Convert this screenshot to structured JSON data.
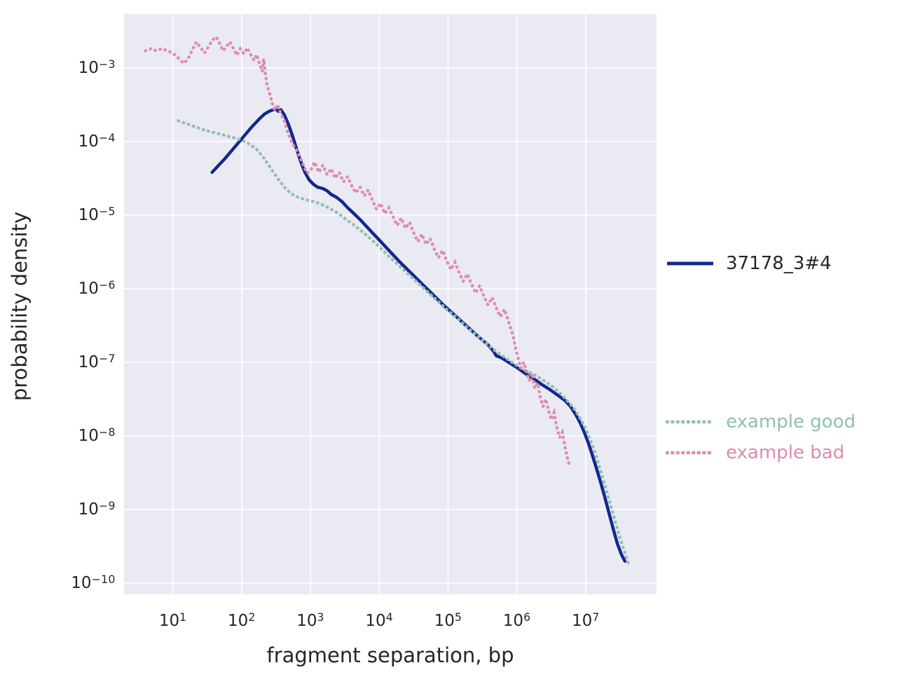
{
  "figure": {
    "background": "#ffffff",
    "plot_background": "#eaeaf2",
    "grid_color": "#ffffff",
    "text_color": "#262626"
  },
  "chart_data": {
    "type": "line",
    "title": "",
    "xlabel": "fragment separation, bp",
    "ylabel": "probability density",
    "x_scale": "log",
    "y_scale": "log",
    "xlim_log10": [
      0.29,
      8.03
    ],
    "ylim_log10": [
      -10.15,
      -2.27
    ],
    "grid": true,
    "legend_position": "right",
    "x_ticks": [
      {
        "base": "10",
        "exp": "1",
        "value": 1
      },
      {
        "base": "10",
        "exp": "2",
        "value": 2
      },
      {
        "base": "10",
        "exp": "3",
        "value": 3
      },
      {
        "base": "10",
        "exp": "4",
        "value": 4
      },
      {
        "base": "10",
        "exp": "5",
        "value": 5
      },
      {
        "base": "10",
        "exp": "6",
        "value": 6
      },
      {
        "base": "10",
        "exp": "7",
        "value": 7
      }
    ],
    "y_ticks": [
      {
        "base": "10",
        "exp": "−3",
        "value": -3
      },
      {
        "base": "10",
        "exp": "−4",
        "value": -4
      },
      {
        "base": "10",
        "exp": "−5",
        "value": -5
      },
      {
        "base": "10",
        "exp": "−6",
        "value": -6
      },
      {
        "base": "10",
        "exp": "−7",
        "value": -7
      },
      {
        "base": "10",
        "exp": "−8",
        "value": -8
      },
      {
        "base": "10",
        "exp": "−9",
        "value": -9
      },
      {
        "base": "10",
        "exp": "−10",
        "value": -10
      }
    ],
    "series": [
      {
        "name": "37178_3#4",
        "color": "#13278d",
        "style": "solid",
        "label_color": "#262626",
        "points_log10": [
          [
            1.57,
            -4.42
          ],
          [
            1.65,
            -4.34
          ],
          [
            1.75,
            -4.24
          ],
          [
            1.85,
            -4.13
          ],
          [
            1.95,
            -4.02
          ],
          [
            2.05,
            -3.91
          ],
          [
            2.15,
            -3.8
          ],
          [
            2.25,
            -3.7
          ],
          [
            2.33,
            -3.63
          ],
          [
            2.4,
            -3.59
          ],
          [
            2.46,
            -3.57
          ],
          [
            2.5,
            -3.56
          ],
          [
            2.53,
            -3.59
          ],
          [
            2.57,
            -3.57
          ],
          [
            2.62,
            -3.64
          ],
          [
            2.68,
            -3.77
          ],
          [
            2.74,
            -3.93
          ],
          [
            2.8,
            -4.11
          ],
          [
            2.86,
            -4.28
          ],
          [
            2.92,
            -4.42
          ],
          [
            2.98,
            -4.52
          ],
          [
            3.04,
            -4.58
          ],
          [
            3.1,
            -4.62
          ],
          [
            3.18,
            -4.64
          ],
          [
            3.24,
            -4.67
          ],
          [
            3.3,
            -4.72
          ],
          [
            3.38,
            -4.76
          ],
          [
            3.46,
            -4.82
          ],
          [
            3.54,
            -4.9
          ],
          [
            3.62,
            -4.97
          ],
          [
            3.72,
            -5.06
          ],
          [
            3.82,
            -5.16
          ],
          [
            3.92,
            -5.26
          ],
          [
            4.02,
            -5.36
          ],
          [
            4.15,
            -5.49
          ],
          [
            4.28,
            -5.62
          ],
          [
            4.41,
            -5.74
          ],
          [
            4.54,
            -5.86
          ],
          [
            4.67,
            -5.98
          ],
          [
            4.8,
            -6.1
          ],
          [
            4.93,
            -6.22
          ],
          [
            5.06,
            -6.33
          ],
          [
            5.19,
            -6.44
          ],
          [
            5.32,
            -6.55
          ],
          [
            5.45,
            -6.66
          ],
          [
            5.58,
            -6.76
          ],
          [
            5.66,
            -6.85
          ],
          [
            5.7,
            -6.91
          ],
          [
            5.78,
            -6.94
          ],
          [
            5.88,
            -7.0
          ],
          [
            6.0,
            -7.07
          ],
          [
            6.12,
            -7.15
          ],
          [
            6.24,
            -7.22
          ],
          [
            6.36,
            -7.3
          ],
          [
            6.48,
            -7.37
          ],
          [
            6.6,
            -7.45
          ],
          [
            6.7,
            -7.52
          ],
          [
            6.78,
            -7.6
          ],
          [
            6.85,
            -7.7
          ],
          [
            6.92,
            -7.82
          ],
          [
            6.98,
            -7.95
          ],
          [
            7.04,
            -8.1
          ],
          [
            7.1,
            -8.27
          ],
          [
            7.16,
            -8.45
          ],
          [
            7.22,
            -8.64
          ],
          [
            7.28,
            -8.84
          ],
          [
            7.34,
            -9.05
          ],
          [
            7.4,
            -9.26
          ],
          [
            7.46,
            -9.46
          ],
          [
            7.52,
            -9.61
          ],
          [
            7.57,
            -9.7
          ]
        ]
      },
      {
        "name": "example good",
        "color": "#8fbeb3",
        "style": "dotted",
        "label_color": "#8fbeb3",
        "points_log10": [
          [
            1.08,
            -3.72
          ],
          [
            1.2,
            -3.76
          ],
          [
            1.32,
            -3.8
          ],
          [
            1.44,
            -3.84
          ],
          [
            1.56,
            -3.87
          ],
          [
            1.68,
            -3.9
          ],
          [
            1.8,
            -3.93
          ],
          [
            1.92,
            -3.96
          ],
          [
            2.02,
            -3.99
          ],
          [
            2.12,
            -4.04
          ],
          [
            2.22,
            -4.11
          ],
          [
            2.32,
            -4.22
          ],
          [
            2.42,
            -4.36
          ],
          [
            2.52,
            -4.5
          ],
          [
            2.62,
            -4.62
          ],
          [
            2.72,
            -4.71
          ],
          [
            2.82,
            -4.76
          ],
          [
            2.92,
            -4.79
          ],
          [
            3.02,
            -4.81
          ],
          [
            3.12,
            -4.84
          ],
          [
            3.22,
            -4.88
          ],
          [
            3.32,
            -4.93
          ],
          [
            3.42,
            -4.99
          ],
          [
            3.52,
            -5.06
          ],
          [
            3.64,
            -5.14
          ],
          [
            3.76,
            -5.23
          ],
          [
            3.88,
            -5.33
          ],
          [
            4.0,
            -5.43
          ],
          [
            4.14,
            -5.56
          ],
          [
            4.28,
            -5.68
          ],
          [
            4.42,
            -5.8
          ],
          [
            4.56,
            -5.92
          ],
          [
            4.7,
            -6.04
          ],
          [
            4.84,
            -6.16
          ],
          [
            4.98,
            -6.28
          ],
          [
            5.12,
            -6.39
          ],
          [
            5.26,
            -6.51
          ],
          [
            5.4,
            -6.62
          ],
          [
            5.54,
            -6.73
          ],
          [
            5.68,
            -6.84
          ],
          [
            5.82,
            -6.93
          ],
          [
            5.96,
            -7.02
          ],
          [
            6.1,
            -7.1
          ],
          [
            6.24,
            -7.16
          ],
          [
            6.38,
            -7.24
          ],
          [
            6.52,
            -7.33
          ],
          [
            6.64,
            -7.43
          ],
          [
            6.74,
            -7.53
          ],
          [
            6.84,
            -7.64
          ],
          [
            6.92,
            -7.76
          ],
          [
            7.0,
            -7.9
          ],
          [
            7.07,
            -8.06
          ],
          [
            7.14,
            -8.24
          ],
          [
            7.21,
            -8.45
          ],
          [
            7.28,
            -8.67
          ],
          [
            7.35,
            -8.9
          ],
          [
            7.42,
            -9.13
          ],
          [
            7.49,
            -9.36
          ],
          [
            7.56,
            -9.56
          ],
          [
            7.62,
            -9.73
          ]
        ]
      },
      {
        "name": "example bad",
        "color": "#dd8cab",
        "style": "dotted",
        "label_color": "#dd8cab",
        "points_log10": [
          [
            0.6,
            -2.77
          ],
          [
            0.68,
            -2.74
          ],
          [
            0.76,
            -2.77
          ],
          [
            0.84,
            -2.74
          ],
          [
            0.92,
            -2.77
          ],
          [
            1.0,
            -2.8
          ],
          [
            1.08,
            -2.87
          ],
          [
            1.16,
            -2.94
          ],
          [
            1.22,
            -2.88
          ],
          [
            1.28,
            -2.76
          ],
          [
            1.34,
            -2.65
          ],
          [
            1.4,
            -2.72
          ],
          [
            1.46,
            -2.8
          ],
          [
            1.52,
            -2.71
          ],
          [
            1.58,
            -2.62
          ],
          [
            1.63,
            -2.58
          ],
          [
            1.68,
            -2.67
          ],
          [
            1.73,
            -2.77
          ],
          [
            1.78,
            -2.71
          ],
          [
            1.83,
            -2.65
          ],
          [
            1.88,
            -2.74
          ],
          [
            1.93,
            -2.83
          ],
          [
            1.98,
            -2.74
          ],
          [
            2.03,
            -2.81
          ],
          [
            2.08,
            -2.73
          ],
          [
            2.13,
            -2.82
          ],
          [
            2.18,
            -2.9
          ],
          [
            2.22,
            -2.82
          ],
          [
            2.26,
            -2.95
          ],
          [
            2.3,
            -3.05
          ],
          [
            2.32,
            -2.88
          ],
          [
            2.34,
            -3.05
          ],
          [
            2.37,
            -3.25
          ],
          [
            2.4,
            -3.32
          ],
          [
            2.44,
            -3.47
          ],
          [
            2.48,
            -3.58
          ],
          [
            2.52,
            -3.5
          ],
          [
            2.56,
            -3.6
          ],
          [
            2.62,
            -3.72
          ],
          [
            2.66,
            -3.85
          ],
          [
            2.7,
            -3.95
          ],
          [
            2.75,
            -4.05
          ],
          [
            2.8,
            -4.12
          ],
          [
            2.85,
            -4.22
          ],
          [
            2.9,
            -4.33
          ],
          [
            2.95,
            -4.43
          ],
          [
            3.0,
            -4.4
          ],
          [
            3.06,
            -4.28
          ],
          [
            3.12,
            -4.42
          ],
          [
            3.18,
            -4.32
          ],
          [
            3.24,
            -4.45
          ],
          [
            3.3,
            -4.37
          ],
          [
            3.36,
            -4.5
          ],
          [
            3.42,
            -4.42
          ],
          [
            3.48,
            -4.55
          ],
          [
            3.54,
            -4.48
          ],
          [
            3.6,
            -4.6
          ],
          [
            3.66,
            -4.7
          ],
          [
            3.72,
            -4.62
          ],
          [
            3.78,
            -4.74
          ],
          [
            3.84,
            -4.66
          ],
          [
            3.9,
            -4.8
          ],
          [
            3.96,
            -4.92
          ],
          [
            4.02,
            -4.84
          ],
          [
            4.08,
            -4.98
          ],
          [
            4.14,
            -4.9
          ],
          [
            4.2,
            -5.02
          ],
          [
            4.26,
            -5.14
          ],
          [
            4.32,
            -5.04
          ],
          [
            4.38,
            -5.18
          ],
          [
            4.44,
            -5.1
          ],
          [
            4.5,
            -5.24
          ],
          [
            4.56,
            -5.36
          ],
          [
            4.62,
            -5.26
          ],
          [
            4.68,
            -5.4
          ],
          [
            4.74,
            -5.32
          ],
          [
            4.8,
            -5.46
          ],
          [
            4.86,
            -5.58
          ],
          [
            4.92,
            -5.48
          ],
          [
            4.98,
            -5.62
          ],
          [
            5.04,
            -5.74
          ],
          [
            5.1,
            -5.64
          ],
          [
            5.16,
            -5.78
          ],
          [
            5.22,
            -5.9
          ],
          [
            5.28,
            -5.8
          ],
          [
            5.34,
            -5.94
          ],
          [
            5.4,
            -6.06
          ],
          [
            5.46,
            -5.96
          ],
          [
            5.52,
            -6.1
          ],
          [
            5.58,
            -6.22
          ],
          [
            5.64,
            -6.12
          ],
          [
            5.7,
            -6.26
          ],
          [
            5.76,
            -6.38
          ],
          [
            5.82,
            -6.28
          ],
          [
            5.88,
            -6.45
          ],
          [
            5.94,
            -6.62
          ],
          [
            5.98,
            -6.8
          ],
          [
            6.02,
            -6.95
          ],
          [
            6.06,
            -7.08
          ],
          [
            6.1,
            -7.0
          ],
          [
            6.14,
            -7.12
          ],
          [
            6.18,
            -7.25
          ],
          [
            6.22,
            -7.15
          ],
          [
            6.26,
            -7.35
          ],
          [
            6.3,
            -7.28
          ],
          [
            6.34,
            -7.48
          ],
          [
            6.38,
            -7.6
          ],
          [
            6.42,
            -7.5
          ],
          [
            6.46,
            -7.65
          ],
          [
            6.5,
            -7.78
          ],
          [
            6.54,
            -7.68
          ],
          [
            6.58,
            -7.88
          ],
          [
            6.62,
            -8.02
          ],
          [
            6.66,
            -7.95
          ],
          [
            6.7,
            -8.15
          ],
          [
            6.74,
            -8.32
          ],
          [
            6.77,
            -8.43
          ]
        ]
      }
    ]
  }
}
